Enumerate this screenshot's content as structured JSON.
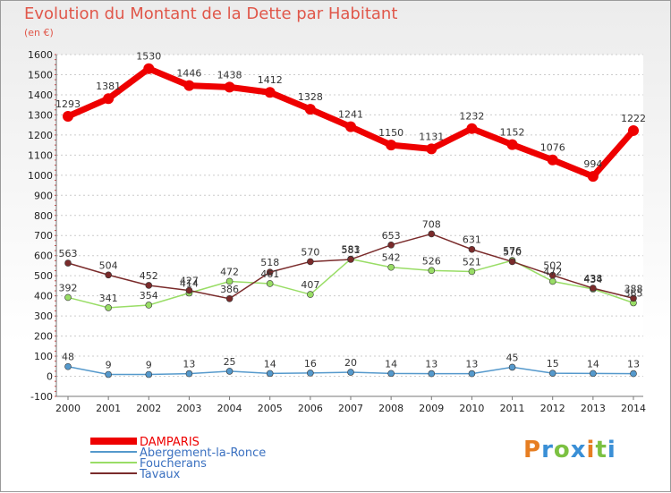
{
  "title": "Evolution du Montant de la Dette par Habitant",
  "subtitle": "(en €)",
  "logo": {
    "text": "Proxiti",
    "colors": [
      "#e67e22",
      "#3a8fd6",
      "#7cc142",
      "#3a8fd6",
      "#e67e22",
      "#7cc142",
      "#3a8fd6"
    ]
  },
  "chart_data": {
    "type": "line",
    "title": "Evolution du Montant de la Dette par Habitant",
    "ylabel": "(en €)",
    "xlabel": "",
    "x": [
      "2000",
      "2001",
      "2002",
      "2003",
      "2004",
      "2005",
      "2006",
      "2007",
      "2008",
      "2009",
      "2010",
      "2011",
      "2012",
      "2013",
      "2014"
    ],
    "yticks": [
      -100,
      0,
      100,
      200,
      300,
      400,
      500,
      600,
      700,
      800,
      900,
      1000,
      1100,
      1200,
      1300,
      1400,
      1500,
      1600
    ],
    "ylim": [
      -100,
      1600
    ],
    "grid": true,
    "legend_position": "bottom-left",
    "series": [
      {
        "name": "DAMPARIS",
        "color": "#ee0000",
        "values": [
          1293,
          1381,
          1530,
          1446,
          1438,
          1412,
          1328,
          1241,
          1150,
          1131,
          1232,
          1152,
          1076,
          994,
          1222
        ]
      },
      {
        "name": "Abergement-la-Ronce",
        "color": "#5599cc",
        "values": [
          48,
          9,
          9,
          13,
          25,
          14,
          16,
          20,
          14,
          13,
          13,
          45,
          15,
          14,
          13
        ]
      },
      {
        "name": "Foucherans",
        "color": "#99dd66",
        "values": [
          392,
          341,
          354,
          414,
          472,
          461,
          407,
          583,
          542,
          526,
          521,
          576,
          472,
          434,
          365
        ]
      },
      {
        "name": "Tavaux",
        "color": "#7a2b2b",
        "values": [
          563,
          504,
          452,
          427,
          386,
          518,
          570,
          581,
          653,
          708,
          631,
          570,
          502,
          438,
          388
        ]
      }
    ]
  }
}
